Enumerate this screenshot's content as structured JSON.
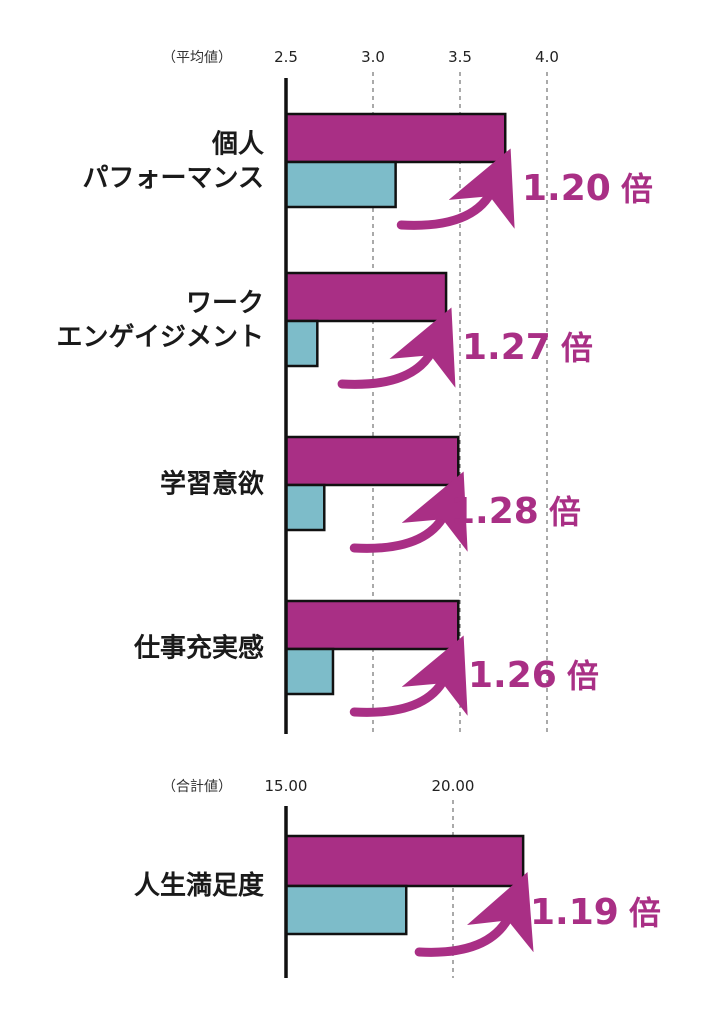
{
  "colors": {
    "primary": "#a92f85",
    "secondary": "#7dbcc9",
    "axis": "#111111",
    "grid": "#555555"
  },
  "chart_data": [
    {
      "type": "bar",
      "orientation": "horizontal",
      "unit_label": "（平均値）",
      "ticks": [
        "2.5",
        "3.0",
        "3.5",
        "4.0"
      ],
      "xlim": [
        2.5,
        4.0
      ],
      "grid": true,
      "categories": [
        [
          "個人",
          "パフォーマンス"
        ],
        [
          "ワーク",
          "エンゲイジメント"
        ],
        [
          "学習意欲"
        ],
        [
          "仕事充実感"
        ]
      ],
      "series": [
        {
          "color_key": "primary",
          "values": [
            3.76,
            3.42,
            3.49,
            3.49
          ]
        },
        {
          "color_key": "secondary",
          "values": [
            3.13,
            2.68,
            2.72,
            2.77
          ]
        }
      ],
      "ratios": [
        "1.20",
        "1.27",
        "1.28",
        "1.26"
      ],
      "ratio_unit": "倍"
    },
    {
      "type": "bar",
      "orientation": "horizontal",
      "unit_label": "（合計値）",
      "ticks": [
        "15.00",
        "20.00"
      ],
      "xlim": [
        15.0,
        22.5
      ],
      "grid": true,
      "categories": [
        [
          "人生満足度"
        ]
      ],
      "series": [
        {
          "color_key": "primary",
          "values": [
            22.1
          ]
        },
        {
          "color_key": "secondary",
          "values": [
            18.6
          ]
        }
      ],
      "ratios": [
        "1.19"
      ],
      "ratio_unit": "倍"
    }
  ]
}
